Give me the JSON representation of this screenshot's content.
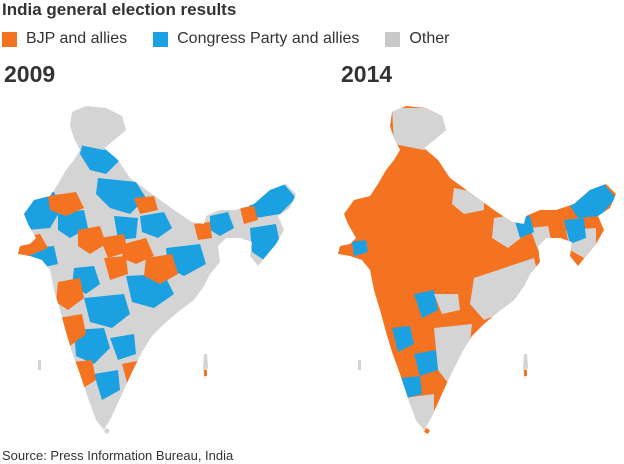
{
  "title": "India general election results",
  "legend": [
    {
      "label": "BJP and allies",
      "color": "#f47321",
      "icon": "orange-square-swatch"
    },
    {
      "label": "Congress Party and allies",
      "color": "#1ba1e2",
      "icon": "blue-square-swatch"
    },
    {
      "label": "Other",
      "color": "#c8c8c8",
      "icon": "grey-square-swatch"
    }
  ],
  "maps": [
    {
      "year": "2009",
      "dominant": "mixed"
    },
    {
      "year": "2014",
      "dominant": "BJP and allies"
    }
  ],
  "source": "Source: Press Information Bureau, India"
}
